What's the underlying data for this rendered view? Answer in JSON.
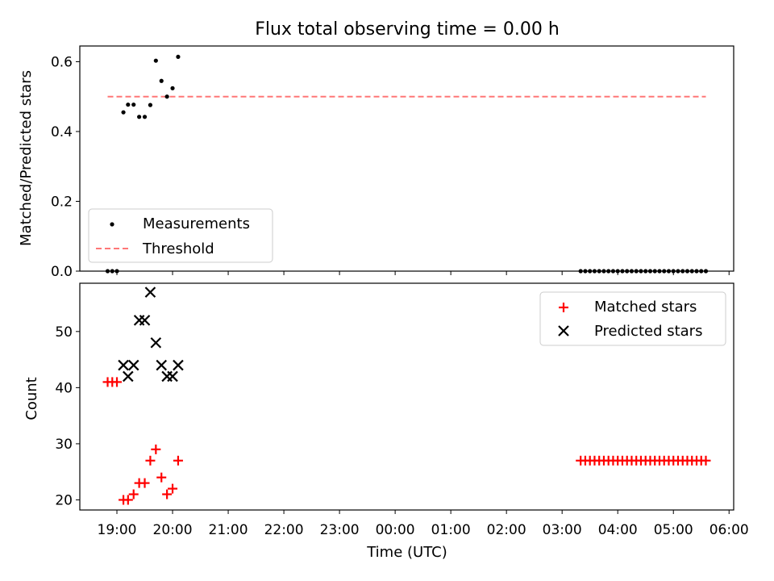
{
  "chart_data": [
    {
      "type": "scatter",
      "title": "Flux total observing time = 0.00 h",
      "xlabel": "",
      "ylabel": "Matched/Predicted stars",
      "ylim": [
        0,
        0.645
      ],
      "yticks": [
        0.0,
        0.2,
        0.4,
        0.6
      ],
      "ytick_labels": [
        "0.0",
        "0.2",
        "0.4",
        "0.6"
      ],
      "legend_position": "lower-left",
      "series": [
        {
          "name": "Measurements",
          "marker": "dot",
          "color": "#000000",
          "points": [
            [
              "18:50",
              0.0
            ],
            [
              "18:55",
              0.0
            ],
            [
              "19:00",
              0.0
            ],
            [
              "19:07",
              0.455
            ],
            [
              "19:12",
              0.477
            ],
            [
              "19:18",
              0.477
            ],
            [
              "19:24",
              0.442
            ],
            [
              "19:30",
              0.442
            ],
            [
              "19:36",
              0.476
            ],
            [
              "19:42",
              0.603
            ],
            [
              "19:48",
              0.545
            ],
            [
              "19:54",
              0.5
            ],
            [
              "20:00",
              0.524
            ],
            [
              "20:06",
              0.614
            ],
            [
              "03:20",
              0.0
            ],
            [
              "03:25",
              0.0
            ],
            [
              "03:30",
              0.0
            ],
            [
              "03:35",
              0.0
            ],
            [
              "03:40",
              0.0
            ],
            [
              "03:45",
              0.0
            ],
            [
              "03:50",
              0.0
            ],
            [
              "03:55",
              0.0
            ],
            [
              "04:00",
              0.0
            ],
            [
              "04:05",
              0.0
            ],
            [
              "04:10",
              0.0
            ],
            [
              "04:15",
              0.0
            ],
            [
              "04:20",
              0.0
            ],
            [
              "04:25",
              0.0
            ],
            [
              "04:30",
              0.0
            ],
            [
              "04:35",
              0.0
            ],
            [
              "04:40",
              0.0
            ],
            [
              "04:45",
              0.0
            ],
            [
              "04:50",
              0.0
            ],
            [
              "04:55",
              0.0
            ],
            [
              "05:00",
              0.0
            ],
            [
              "05:05",
              0.0
            ],
            [
              "05:10",
              0.0
            ],
            [
              "05:15",
              0.0
            ],
            [
              "05:20",
              0.0
            ],
            [
              "05:25",
              0.0
            ],
            [
              "05:30",
              0.0
            ],
            [
              "05:35",
              0.0
            ]
          ]
        },
        {
          "name": "Threshold",
          "marker": "dashed-line",
          "color": "#ff7777",
          "points": [
            [
              "18:50",
              0.5
            ],
            [
              "05:35",
              0.5
            ]
          ]
        }
      ]
    },
    {
      "type": "scatter",
      "title": "",
      "xlabel": "Time (UTC)",
      "ylabel": "Count",
      "ylim": [
        18.2,
        58.6
      ],
      "yticks": [
        20,
        30,
        40,
        50
      ],
      "ytick_labels": [
        "20",
        "30",
        "40",
        "50"
      ],
      "xlim": [
        "18:20",
        "06:05"
      ],
      "xticks": [
        "19:00",
        "20:00",
        "21:00",
        "22:00",
        "23:00",
        "00:00",
        "01:00",
        "02:00",
        "03:00",
        "04:00",
        "05:00",
        "06:00"
      ],
      "legend_position": "upper-right",
      "series": [
        {
          "name": "Matched stars",
          "marker": "plus",
          "color": "#ff0000",
          "points": [
            [
              "18:50",
              41
            ],
            [
              "18:55",
              41
            ],
            [
              "19:00",
              41
            ],
            [
              "19:07",
              20
            ],
            [
              "19:12",
              20
            ],
            [
              "19:18",
              21
            ],
            [
              "19:24",
              23
            ],
            [
              "19:30",
              23
            ],
            [
              "19:36",
              27
            ],
            [
              "19:42",
              29
            ],
            [
              "19:48",
              24
            ],
            [
              "19:54",
              21
            ],
            [
              "20:00",
              22
            ],
            [
              "20:06",
              27
            ],
            [
              "03:20",
              27
            ],
            [
              "03:25",
              27
            ],
            [
              "03:30",
              27
            ],
            [
              "03:35",
              27
            ],
            [
              "03:40",
              27
            ],
            [
              "03:45",
              27
            ],
            [
              "03:50",
              27
            ],
            [
              "03:55",
              27
            ],
            [
              "04:00",
              27
            ],
            [
              "04:05",
              27
            ],
            [
              "04:10",
              27
            ],
            [
              "04:15",
              27
            ],
            [
              "04:20",
              27
            ],
            [
              "04:25",
              27
            ],
            [
              "04:30",
              27
            ],
            [
              "04:35",
              27
            ],
            [
              "04:40",
              27
            ],
            [
              "04:45",
              27
            ],
            [
              "04:50",
              27
            ],
            [
              "04:55",
              27
            ],
            [
              "05:00",
              27
            ],
            [
              "05:05",
              27
            ],
            [
              "05:10",
              27
            ],
            [
              "05:15",
              27
            ],
            [
              "05:20",
              27
            ],
            [
              "05:25",
              27
            ],
            [
              "05:30",
              27
            ],
            [
              "05:35",
              27
            ]
          ]
        },
        {
          "name": "Predicted stars",
          "marker": "x",
          "color": "#000000",
          "points": [
            [
              "19:07",
              44
            ],
            [
              "19:12",
              42
            ],
            [
              "19:18",
              44
            ],
            [
              "19:24",
              52
            ],
            [
              "19:30",
              52
            ],
            [
              "19:36",
              57
            ],
            [
              "19:42",
              48
            ],
            [
              "19:48",
              44
            ],
            [
              "19:54",
              42
            ],
            [
              "20:00",
              42
            ],
            [
              "20:06",
              44
            ]
          ]
        }
      ]
    }
  ]
}
